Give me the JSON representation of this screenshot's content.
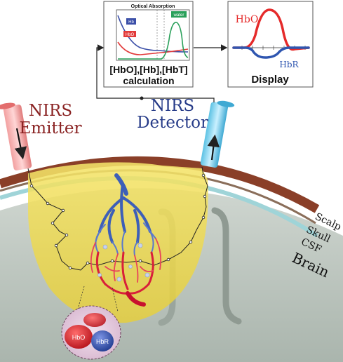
{
  "optical_panel": {
    "title": "Optical Absorption",
    "curves": [
      {
        "label": "Hb",
        "color": "#3b4fa8"
      },
      {
        "label": "HbO",
        "color": "#e23a3a"
      },
      {
        "label": "water",
        "color": "#2aa05a"
      }
    ]
  },
  "calc_panel": {
    "line1": "[HbO],[Hb],[HbT]",
    "line2": "calculation"
  },
  "display_panel": {
    "title": "Display",
    "hbo_label": "HbO",
    "hbr_label": "HbR",
    "hbo_color": "#e52a2a",
    "hbr_color": "#2f56b0"
  },
  "emitter": {
    "line1": "NIRS",
    "line2": "Emitter",
    "color": "#8a2323"
  },
  "detector": {
    "line1": "NIRS",
    "line2": "Detector",
    "color": "#263b88"
  },
  "layers": {
    "scalp": "Scalp",
    "skull": "Skull",
    "csf": "CSF",
    "brain": "Brain"
  },
  "blood_cells": {
    "hbo": "HbO",
    "hbr": "HbR",
    "hbo_color": "#d6262c",
    "hbr_color": "#2b4aa5"
  }
}
